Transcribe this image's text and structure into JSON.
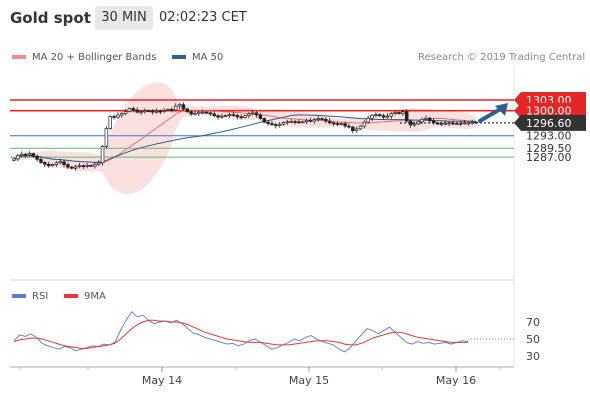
{
  "header": {
    "instrument": "Gold spot",
    "timeframe": "30 MIN",
    "time": "02:02:23 CET"
  },
  "legend": {
    "ma20_label": "MA 20 + Bollinger Bands",
    "ma50_label": "MA 50",
    "source": "Research © 2019 Trading Central",
    "ma20_color": "#e57373",
    "ma50_color": "#2d5f8f"
  },
  "rsi_legend": {
    "rsi_label": "RSI",
    "ma_label": "9MA",
    "rsi_color": "#5b78d6",
    "ma_color": "#e53935"
  },
  "chart_data": [
    {
      "type": "candlestick",
      "xlabel": "",
      "ylabel": "",
      "x_ticks": [
        "May 14",
        "May 15",
        "May 16"
      ],
      "ylim": [
        1277,
        1312
      ],
      "levels": [
        {
          "label": "1303.00",
          "value": 1303.0,
          "style": "resistance",
          "color": "#e52626"
        },
        {
          "label": "1300.00",
          "value": 1300.0,
          "style": "resistance",
          "color": "#e52626"
        },
        {
          "label": "1296.60",
          "value": 1296.6,
          "style": "last",
          "color": "#333333"
        },
        {
          "label": "1293.00",
          "value": 1293.0,
          "style": "support",
          "color": "#3b6fd6"
        },
        {
          "label": "1289.50",
          "value": 1289.5,
          "style": "support",
          "color": "#6ab56a"
        },
        {
          "label": "1287.00",
          "value": 1287.0,
          "style": "support",
          "color": "#6ab56a"
        }
      ],
      "closes": [
        1286.5,
        1287.4,
        1287.8,
        1287.6,
        1288,
        1287.2,
        1286.4,
        1285.5,
        1285,
        1284.6,
        1284.9,
        1285.4,
        1285.7,
        1284.9,
        1284.2,
        1283.9,
        1284.3,
        1284.6,
        1284.4,
        1284.7,
        1284.5,
        1285,
        1285.4,
        1290,
        1295,
        1298.4,
        1298.2,
        1298.8,
        1299.2,
        1299.8,
        1300.6,
        1300.2,
        1299.6,
        1299.7,
        1300,
        1299.9,
        1299.6,
        1299.9,
        1299.8,
        1300.1,
        1300.4,
        1300.2,
        1301.3,
        1301.7,
        1300.5,
        1299.7,
        1299.1,
        1299.3,
        1299.6,
        1299.6,
        1299.4,
        1299.1,
        1298.6,
        1298.2,
        1298.5,
        1298.7,
        1298.9,
        1298.7,
        1298.3,
        1298.1,
        1298.6,
        1299.1,
        1299.4,
        1298.8,
        1297.8,
        1296.8,
        1296.4,
        1296.1,
        1295.8,
        1296.2,
        1296.7,
        1296.9,
        1297,
        1296.9,
        1296.8,
        1296.9,
        1297.3,
        1297.1,
        1297.5,
        1297.8,
        1297.6,
        1297.1,
        1296.6,
        1296.4,
        1296.2,
        1296.4,
        1295.7,
        1295.4,
        1294.4,
        1294.9,
        1295.7,
        1296.8,
        1297.9,
        1298.7,
        1298.9,
        1298.6,
        1298.2,
        1298.5,
        1299.2,
        1299.5,
        1299.2,
        1299.7,
        1297.1,
        1296,
        1296.3,
        1296.9,
        1297.6,
        1297.9,
        1297.2,
        1296.6,
        1296.3,
        1296.4,
        1296.5,
        1296.6,
        1296.4,
        1296.4,
        1296.5,
        1296.6,
        1296.6,
        1296.8,
        1296.6
      ],
      "rsi": {
        "ylim": [
          20,
          90
        ],
        "ticks": [
          70,
          50,
          30
        ],
        "rsi_values": [
          48,
          55,
          53,
          56,
          52,
          45,
          42,
          40,
          38,
          41,
          40,
          36,
          38,
          40,
          42,
          41,
          44,
          43,
          46,
          60,
          72,
          82,
          76,
          78,
          72,
          68,
          70,
          71,
          69,
          72,
          68,
          62,
          57,
          55,
          52,
          50,
          48,
          46,
          44,
          45,
          42,
          44,
          48,
          50,
          46,
          42,
          38,
          40,
          43,
          46,
          50,
          48,
          52,
          54,
          50,
          47,
          45,
          43,
          38,
          35,
          40,
          48,
          55,
          62,
          60,
          56,
          60,
          64,
          58,
          52,
          46,
          44,
          47,
          45,
          46,
          44,
          45,
          46,
          44,
          46,
          48,
          47
        ],
        "ma_values": [
          47,
          49,
          50,
          51,
          51,
          50,
          48,
          46,
          44,
          42,
          41,
          40,
          39,
          39,
          40,
          41,
          42,
          43,
          45,
          50,
          56,
          62,
          67,
          70,
          72,
          72,
          71,
          71,
          70,
          70,
          69,
          67,
          64,
          61,
          58,
          56,
          54,
          52,
          50,
          49,
          48,
          47,
          46,
          46,
          46,
          45,
          44,
          43,
          43,
          43,
          44,
          45,
          46,
          47,
          48,
          48,
          48,
          47,
          46,
          44,
          43,
          43,
          45,
          48,
          51,
          53,
          55,
          57,
          58,
          58,
          56,
          54,
          52,
          51,
          50,
          49,
          48,
          47,
          46,
          46,
          46,
          46
        ]
      }
    }
  ]
}
